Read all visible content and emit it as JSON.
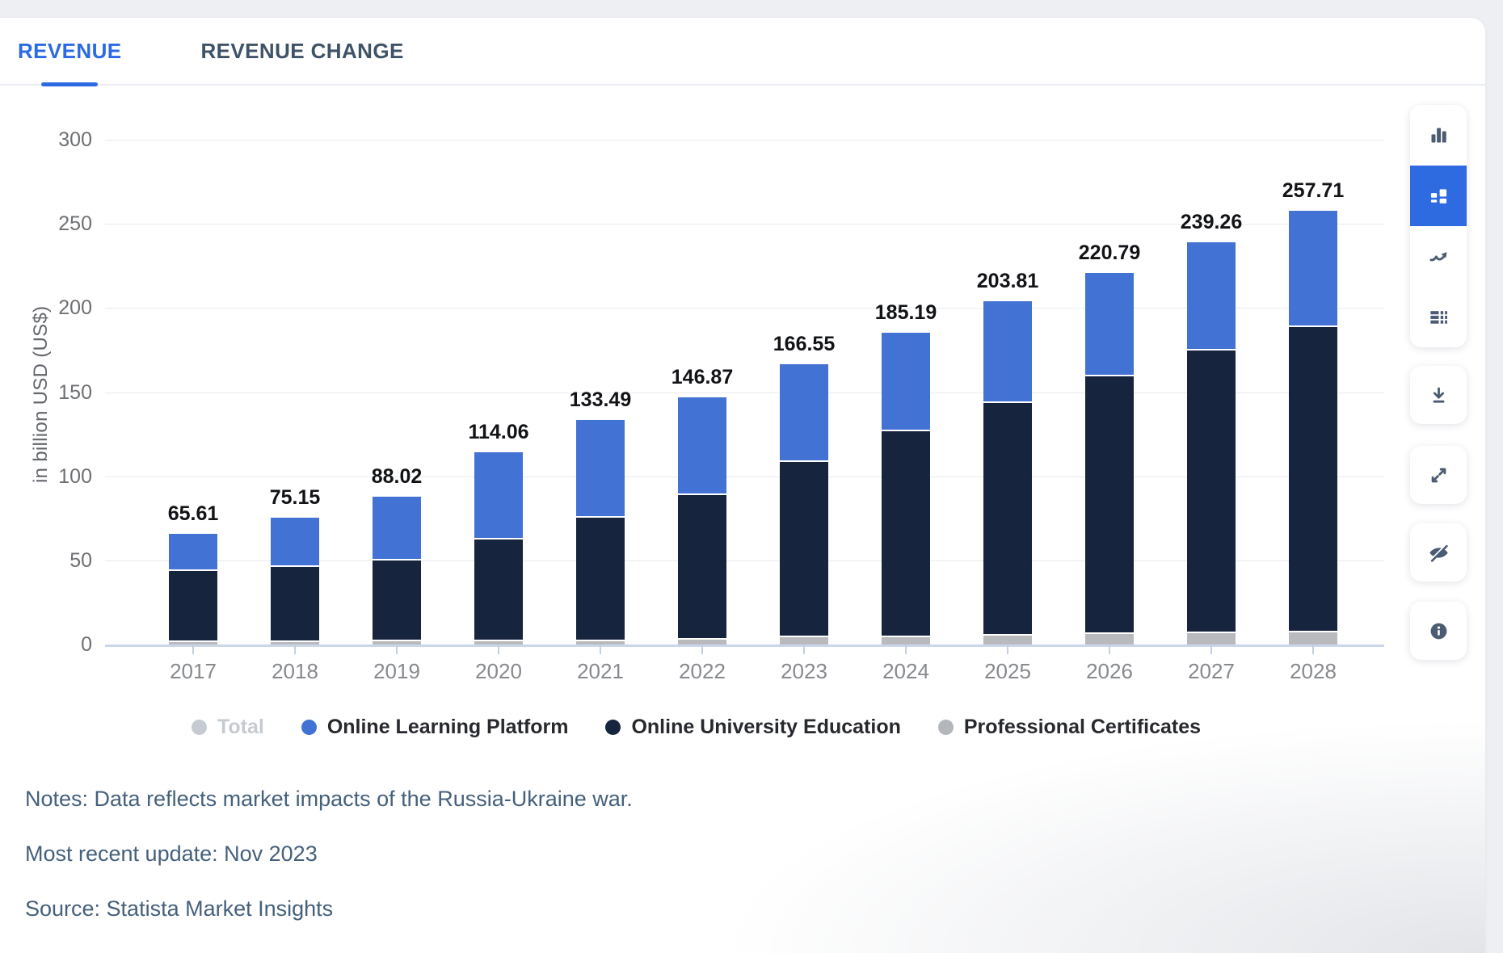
{
  "tabs": [
    {
      "label": "REVENUE",
      "active": true
    },
    {
      "label": "REVENUE CHANGE",
      "active": false
    }
  ],
  "chart_data": {
    "type": "bar",
    "stacked": true,
    "title": "",
    "xlabel": "",
    "ylabel": "in billion USD (US$)",
    "ylim": [
      0,
      300
    ],
    "ytick_step": 50,
    "grid": true,
    "categories": [
      "2017",
      "2018",
      "2019",
      "2020",
      "2021",
      "2022",
      "2023",
      "2024",
      "2025",
      "2026",
      "2027",
      "2028"
    ],
    "series": [
      {
        "name": "Professional Certificates",
        "color": "#b8babd",
        "values": [
          2.0,
          2.0,
          2.5,
          2.5,
          2.5,
          3.5,
          5.0,
          5.0,
          6.0,
          6.5,
          7.0,
          7.5
        ]
      },
      {
        "name": "Online University Education",
        "color": "#16243e",
        "values": [
          42.0,
          44.5,
          48.0,
          60.5,
          73.5,
          86.0,
          104.0,
          122.0,
          138.0,
          153.5,
          168.0,
          181.5
        ]
      },
      {
        "name": "Online Learning Platform",
        "color": "#4272d3",
        "values": [
          21.61,
          28.65,
          37.52,
          51.06,
          57.49,
          57.37,
          57.55,
          58.19,
          59.81,
          60.79,
          64.26,
          68.71
        ]
      }
    ],
    "totals": [
      65.61,
      75.15,
      88.02,
      114.06,
      133.49,
      146.87,
      166.55,
      185.19,
      203.81,
      220.79,
      239.26,
      257.71
    ],
    "legend": [
      {
        "label": "Total",
        "color": "#c6cad1",
        "disabled": true
      },
      {
        "label": "Online Learning Platform",
        "color": "#4272d3",
        "disabled": false
      },
      {
        "label": "Online University Education",
        "color": "#16243e",
        "disabled": false
      },
      {
        "label": "Professional Certificates",
        "color": "#b3b7bc",
        "disabled": false
      }
    ],
    "legend_position": "bottom"
  },
  "notes": {
    "note": "Notes: Data reflects market impacts of the Russia-Ukraine war.",
    "update": "Most recent update: Nov 2023",
    "source": "Source: Statista Market Insights"
  },
  "accent_colors": {
    "tab_active": "#2b6ae3",
    "toolbar_active_bg": "#2e6ae0",
    "axis_line": "#cbd6ea"
  }
}
